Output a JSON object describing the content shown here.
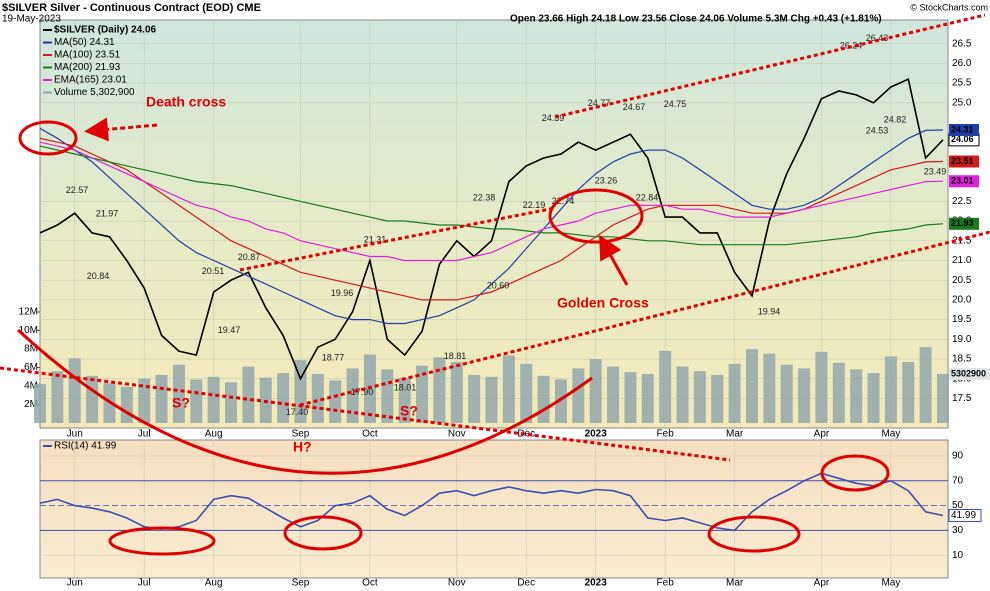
{
  "chart_data": [
    {
      "type": "line",
      "title": "$SILVER Silver - Continuous Contract (EOD) CME",
      "subtitle": "19-May-2023",
      "quote": "Open 23.66 High 24.18 Low 23.56 Close 24.06 Volume 5.3M Chg +0.43 (+1.81%)",
      "credit": "© StockCharts.com",
      "categories": [
        null,
        null,
        "Jun",
        null,
        null,
        null,
        "Jul",
        null,
        null,
        null,
        "Aug",
        null,
        null,
        null,
        null,
        "Sep",
        null,
        null,
        null,
        "Oct",
        null,
        null,
        null,
        null,
        "Nov",
        null,
        null,
        null,
        "Dec",
        null,
        null,
        null,
        "2023",
        null,
        null,
        null,
        "Feb",
        null,
        null,
        null,
        "Mar",
        null,
        null,
        null,
        null,
        "Apr",
        null,
        null,
        null,
        "May",
        null,
        null,
        null
      ],
      "series": [
        {
          "name": "$SILVER (Daily) 24.06",
          "color": "#000000",
          "values": [
            21.7,
            21.9,
            22.2,
            21.7,
            21.6,
            21.0,
            20.3,
            19.1,
            18.7,
            18.6,
            20.2,
            20.5,
            20.7,
            19.8,
            19.1,
            18.0,
            18.8,
            19.0,
            19.7,
            21.0,
            19.0,
            18.6,
            19.2,
            20.9,
            21.5,
            21.1,
            21.5,
            23.0,
            23.4,
            23.6,
            23.7,
            24.0,
            23.8,
            24.0,
            24.2,
            23.6,
            22.1,
            22.1,
            21.7,
            21.7,
            20.7,
            20.1,
            22.0,
            23.2,
            24.1,
            25.1,
            25.3,
            25.2,
            25.0,
            25.4,
            25.6,
            23.6,
            24.06
          ]
        },
        {
          "name": "MA(50) 24.31",
          "color": "#1f3fa8",
          "values": [
            24.35,
            24.1,
            23.8,
            23.5,
            23.1,
            22.7,
            22.3,
            21.9,
            21.5,
            21.2,
            21.0,
            20.8,
            20.6,
            20.4,
            20.2,
            20.0,
            19.8,
            19.6,
            19.5,
            19.5,
            19.4,
            19.4,
            19.5,
            19.6,
            19.8,
            20.0,
            20.4,
            20.8,
            21.3,
            21.8,
            22.3,
            22.8,
            23.2,
            23.5,
            23.7,
            23.8,
            23.8,
            23.6,
            23.3,
            23.0,
            22.7,
            22.4,
            22.3,
            22.3,
            22.4,
            22.6,
            22.9,
            23.2,
            23.5,
            23.8,
            24.1,
            24.3,
            24.31
          ]
        },
        {
          "name": "MA(100) 23.51",
          "color": "#d11a1a",
          "values": [
            24.1,
            24.0,
            23.9,
            23.7,
            23.5,
            23.3,
            23.0,
            22.7,
            22.4,
            22.1,
            21.8,
            21.5,
            21.3,
            21.1,
            20.9,
            20.7,
            20.6,
            20.5,
            20.4,
            20.3,
            20.2,
            20.1,
            20.0,
            20.0,
            20.0,
            20.1,
            20.2,
            20.4,
            20.6,
            20.8,
            21.0,
            21.3,
            21.6,
            21.9,
            22.1,
            22.3,
            22.4,
            22.4,
            22.4,
            22.4,
            22.3,
            22.2,
            22.2,
            22.2,
            22.3,
            22.5,
            22.7,
            22.9,
            23.1,
            23.3,
            23.4,
            23.5,
            23.51
          ]
        },
        {
          "name": "MA(200) 21.93",
          "color": "#1a7a1a",
          "values": [
            23.9,
            23.8,
            23.7,
            23.6,
            23.5,
            23.4,
            23.3,
            23.2,
            23.1,
            23.0,
            22.95,
            22.9,
            22.8,
            22.7,
            22.6,
            22.5,
            22.4,
            22.3,
            22.2,
            22.1,
            22.0,
            22.0,
            21.95,
            21.9,
            21.9,
            21.85,
            21.8,
            21.8,
            21.75,
            21.7,
            21.7,
            21.65,
            21.6,
            21.6,
            21.55,
            21.5,
            21.5,
            21.45,
            21.4,
            21.4,
            21.4,
            21.4,
            21.4,
            21.4,
            21.45,
            21.5,
            21.55,
            21.6,
            21.7,
            21.75,
            21.8,
            21.9,
            21.93
          ]
        },
        {
          "name": "EMA(165) 23.01",
          "color": "#e020e0",
          "values": [
            24.0,
            23.9,
            23.8,
            23.6,
            23.4,
            23.2,
            23.0,
            22.8,
            22.6,
            22.4,
            22.3,
            22.1,
            22.0,
            21.8,
            21.7,
            21.5,
            21.4,
            21.3,
            21.2,
            21.1,
            21.1,
            21.0,
            21.0,
            21.0,
            21.0,
            21.1,
            21.2,
            21.4,
            21.6,
            21.8,
            21.9,
            22.0,
            22.2,
            22.3,
            22.4,
            22.4,
            22.4,
            22.3,
            22.3,
            22.2,
            22.1,
            22.1,
            22.1,
            22.2,
            22.3,
            22.4,
            22.5,
            22.6,
            22.7,
            22.8,
            22.9,
            23.0,
            23.01
          ]
        },
        {
          "name": "Volume 5,302,900",
          "color": "#93a7ae",
          "type": "bar",
          "axis": "y2",
          "values": [
            4200000,
            5600000,
            7000000,
            5100000,
            4300000,
            3900000,
            4800000,
            5200000,
            6300000,
            4700000,
            5000000,
            4400000,
            6100000,
            4900000,
            5400000,
            6800000,
            5300000,
            4600000,
            5900000,
            7400000,
            5800000,
            4900000,
            6200000,
            7100000,
            6600000,
            5200000,
            5000000,
            7300000,
            6400000,
            5100000,
            4700000,
            5900000,
            6900000,
            6100000,
            5500000,
            5300000,
            7800000,
            6100000,
            5600000,
            5200000,
            6400000,
            8000000,
            7500000,
            6300000,
            5900000,
            7700000,
            6500000,
            5800000,
            5400000,
            7200000,
            6600000,
            8200000,
            5302900
          ]
        }
      ],
      "ylim": [
        16.75,
        27.1
      ],
      "yticks": [
        17.5,
        {
          "value": 18,
          "label": "18.0"
        },
        18.5,
        {
          "value": 19,
          "label": "19.0"
        },
        19.5,
        {
          "value": 20,
          "label": "20.0"
        },
        20.5,
        {
          "value": 21,
          "label": "21.0"
        },
        21.5,
        {
          "value": 22,
          "label": "22.0"
        },
        22.5,
        {
          "value": 25,
          "label": "25.0"
        },
        25.5,
        {
          "value": 26,
          "label": "26.0"
        },
        26.5
      ],
      "y2lim": [
        -540000,
        43570000
      ],
      "y2ticks": [
        {
          "value": 2000000,
          "label": "2M"
        },
        {
          "value": 4000000,
          "label": "4M"
        },
        {
          "value": 6000000,
          "label": "6M"
        },
        {
          "value": 8000000,
          "label": "8M"
        },
        {
          "value": 10000000,
          "label": "10M"
        },
        {
          "value": 12000000,
          "label": "12M"
        }
      ],
      "grid": true,
      "peak_labels": [
        {
          "value": 22.57,
          "label": "22.57"
        },
        {
          "value": 21.97,
          "label": "21.97"
        },
        {
          "value": 20.84,
          "label": "20.84"
        },
        {
          "value": 20.51,
          "label": "20.51"
        },
        {
          "value": 20.87,
          "label": "20.87"
        },
        {
          "value": 19.47,
          "label": "19.47"
        },
        {
          "value": 21.31,
          "label": "21.31"
        },
        {
          "value": 19.96,
          "label": "19.96"
        },
        {
          "value": 18.77,
          "label": "18.77"
        },
        {
          "value": 17.9,
          "label": "17.90"
        },
        {
          "value": 17.4,
          "label": "17.40"
        },
        {
          "value": 18.01,
          "label": "18.01"
        },
        {
          "value": 18.81,
          "label": "18.81"
        },
        {
          "value": 22.38,
          "label": "22.38"
        },
        {
          "value": 22.19,
          "label": "22.19"
        },
        {
          "value": 20.6,
          "label": "20.60"
        },
        {
          "value": 24.39,
          "label": "24.39"
        },
        {
          "value": 22.74,
          "label": "22.74"
        },
        {
          "value": 24.77,
          "label": "24.77"
        },
        {
          "value": 24.67,
          "label": "24.67"
        },
        {
          "value": 23.26,
          "label": "23.26"
        },
        {
          "value": 22.84,
          "label": "22.84"
        },
        {
          "value": 24.75,
          "label": "24.75"
        },
        {
          "value": 19.94,
          "label": "19.94"
        },
        {
          "value": 26.24,
          "label": "26.24"
        },
        {
          "value": 26.43,
          "label": "26.43"
        },
        {
          "value": 24.82,
          "label": "24.82"
        },
        {
          "value": 24.53,
          "label": "24.53"
        },
        {
          "value": 23.49,
          "label": "23.49"
        }
      ],
      "annotations": [
        "Death cross",
        "Golden Cross",
        "S?",
        "S?",
        "H?"
      ]
    },
    {
      "type": "line",
      "series": [
        {
          "name": "RSI(14) 41.99",
          "color": "#3a4fb0",
          "values": [
            52,
            55,
            50,
            48,
            45,
            40,
            33,
            31,
            33,
            38,
            55,
            58,
            56,
            48,
            40,
            33,
            38,
            50,
            52,
            58,
            47,
            42,
            50,
            60,
            62,
            58,
            62,
            65,
            62,
            60,
            62,
            60,
            63,
            62,
            58,
            40,
            38,
            40,
            36,
            32,
            30,
            45,
            55,
            62,
            70,
            76,
            72,
            68,
            66,
            70,
            62,
            45,
            41.99
          ]
        }
      ],
      "ylim": [
        -8.4,
        102.9
      ],
      "yticks": [
        10,
        30,
        50,
        70,
        90
      ]
    }
  ]
}
